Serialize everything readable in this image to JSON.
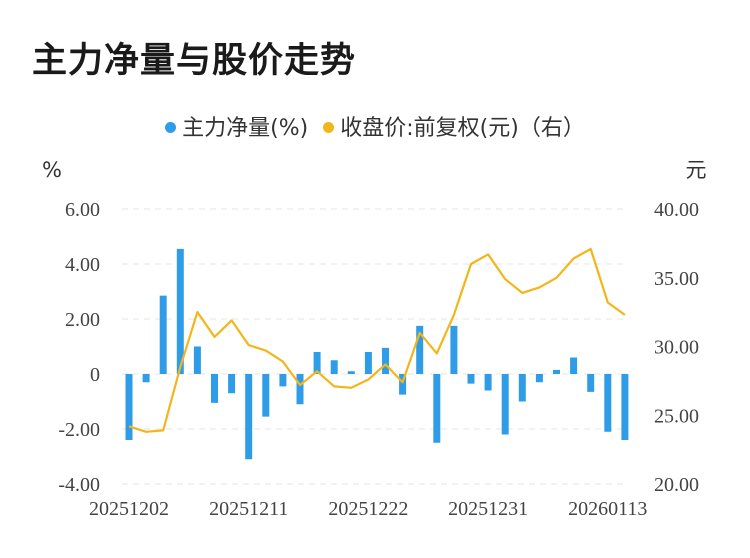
{
  "title": "主力净量与股价走势",
  "legend": {
    "bar_label": "主力净量(%)",
    "line_label": "收盘价:前复权(元)（右）"
  },
  "colors": {
    "bar": "#2f9ce8",
    "line": "#f2b61a",
    "grid": "#e6e6e6"
  },
  "chart_data": {
    "type": "bar+line",
    "left_axis": {
      "unit": "%",
      "ylim": [
        -4,
        6
      ],
      "ticks": [
        "6.00",
        "4.00",
        "2.00",
        "0",
        "-2.00",
        "-4.00"
      ],
      "tick_values": [
        6,
        4,
        2,
        0,
        -2,
        -4
      ]
    },
    "right_axis": {
      "unit": "元",
      "ylim": [
        20,
        40
      ],
      "ticks": [
        "40.00",
        "35.00",
        "30.00",
        "25.00",
        "20.00"
      ],
      "tick_values": [
        40,
        35,
        30,
        25,
        20
      ]
    },
    "x_tick_labels": [
      "20251202",
      "20251211",
      "20251222",
      "20251231",
      "20260113"
    ],
    "x_tick_indices": [
      0,
      7,
      14,
      21,
      28
    ],
    "grid": true,
    "series": [
      {
        "name": "主力净量(%)",
        "type": "bar",
        "axis": "left",
        "values": [
          -2.4,
          -0.3,
          2.85,
          4.55,
          1.0,
          -1.05,
          -0.7,
          -3.1,
          -1.55,
          -0.45,
          -1.1,
          0.8,
          0.5,
          0.1,
          0.8,
          0.95,
          -0.75,
          1.75,
          -2.5,
          1.75,
          -0.35,
          -0.6,
          -2.2,
          -1.0,
          -0.3,
          0.15,
          0.6,
          -0.65,
          -2.1,
          -2.4
        ]
      },
      {
        "name": "收盘价:前复权(元)（右）",
        "type": "line",
        "axis": "right",
        "values": [
          24.2,
          23.8,
          23.9,
          28.5,
          32.5,
          30.7,
          31.9,
          30.1,
          29.7,
          28.9,
          27.2,
          28.2,
          27.1,
          27.0,
          27.6,
          28.7,
          27.4,
          31.0,
          29.5,
          32.3,
          36.0,
          36.7,
          34.9,
          33.9,
          34.3,
          35.0,
          36.4,
          37.1,
          33.2,
          32.3
        ]
      }
    ]
  }
}
